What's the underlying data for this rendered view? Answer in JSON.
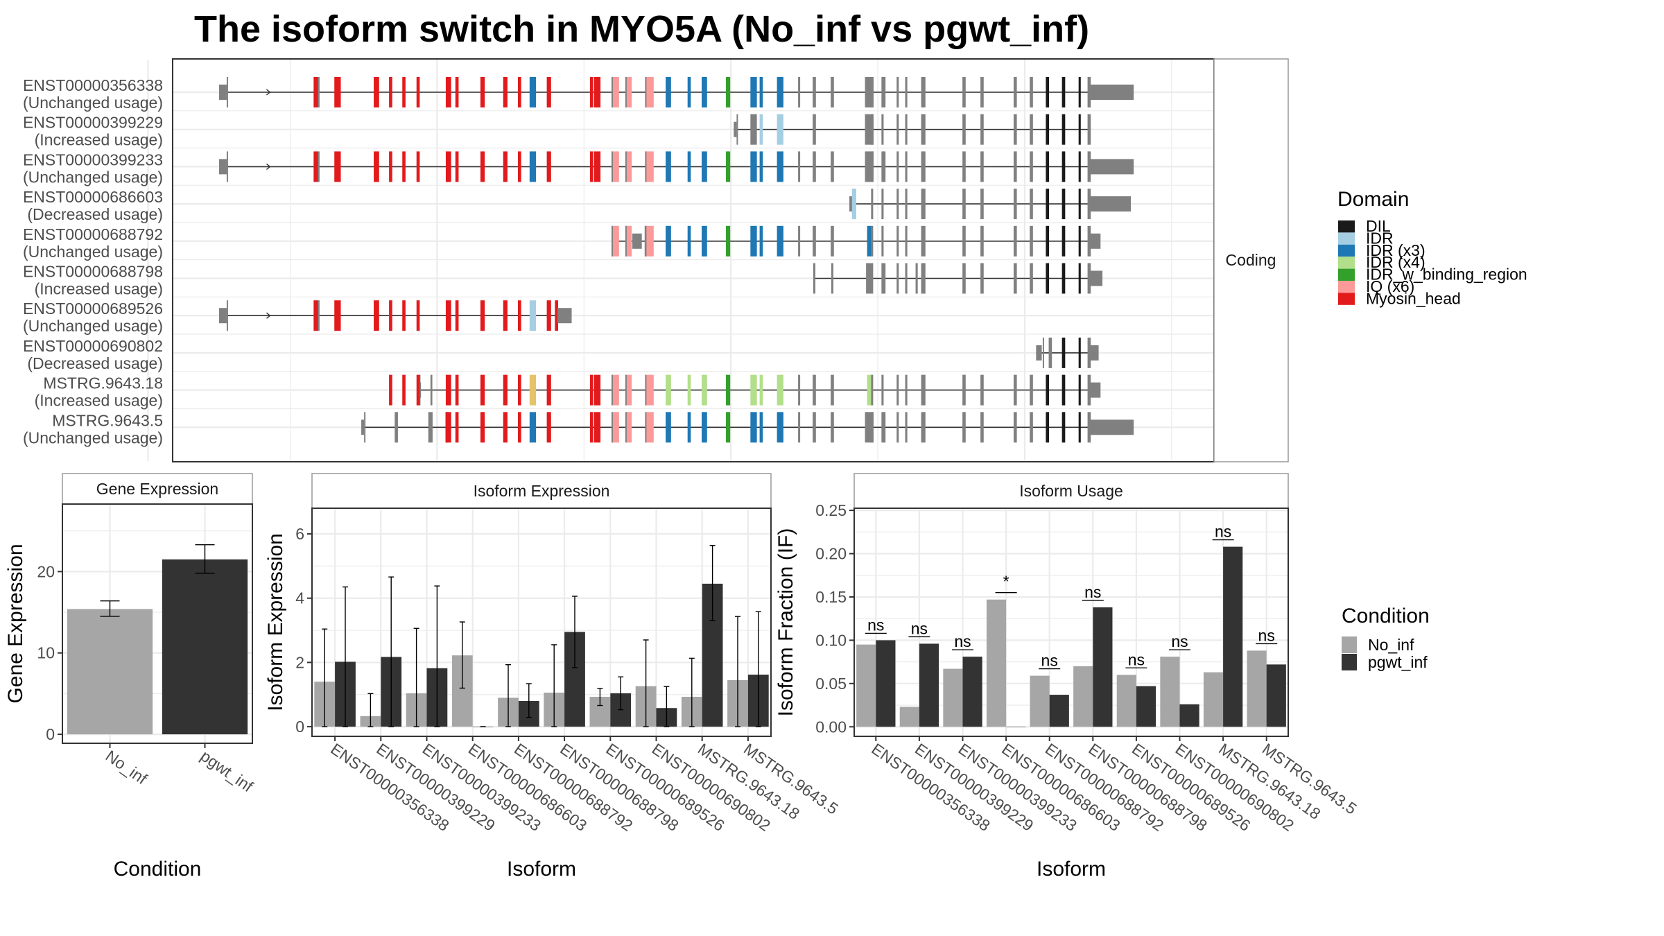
{
  "title": "The isoform switch in MYO5A (No_inf vs pgwt_inf)",
  "chart_data": [
    {
      "type": "gene-structure",
      "panel": "transcript-structure",
      "strip_label": "Coding",
      "genomic_range": [
        0,
        1000
      ],
      "transcripts": [
        {
          "id": "ENST00000356338",
          "usage": "(Unchanged usage)"
        },
        {
          "id": "ENST00000399229",
          "usage": "(Increased usage)"
        },
        {
          "id": "ENST00000399233",
          "usage": "(Unchanged usage)"
        },
        {
          "id": "ENST00000686603",
          "usage": "(Decreased usage)"
        },
        {
          "id": "ENST00000688792",
          "usage": "(Unchanged usage)"
        },
        {
          "id": "ENST00000688798",
          "usage": "(Increased usage)"
        },
        {
          "id": "ENST00000689526",
          "usage": "(Unchanged usage)"
        },
        {
          "id": "ENST00000690802",
          "usage": "(Decreased usage)"
        },
        {
          "id": "MSTRG.9643.18",
          "usage": "(Increased usage)"
        },
        {
          "id": "MSTRG.9643.5",
          "usage": "(Unchanged usage)"
        }
      ],
      "legend": {
        "title": "Domain",
        "items": [
          {
            "label": "DIL",
            "color": "#1a1a1a"
          },
          {
            "label": "IDR",
            "color": "#a6cee3"
          },
          {
            "label": "IDR (x3)",
            "color": "#1f78b4"
          },
          {
            "label": "IDR (x4)",
            "color": "#b2df8a"
          },
          {
            "label": "IDR_w_binding_region",
            "color": "#33a02c"
          },
          {
            "label": "IQ (x6)",
            "color": "#fb9a99"
          },
          {
            "label": "Myosin_head",
            "color": "#e31a1c"
          }
        ]
      },
      "noncoding_color": "#808080"
    },
    {
      "type": "bar",
      "panel": "gene-expression",
      "title": "Gene Expression",
      "xlabel": "Condition",
      "ylabel": "Gene Expression",
      "categories": [
        "No_inf",
        "pgwt_inf"
      ],
      "values": [
        15.4,
        21.5
      ],
      "error_low": [
        14.5,
        19.8
      ],
      "error_high": [
        16.4,
        23.3
      ],
      "colors": [
        "#a6a6a6",
        "#333333"
      ],
      "yticks": [
        0,
        10,
        20
      ],
      "ylim": [
        -1.1,
        28.3
      ]
    },
    {
      "type": "bar",
      "panel": "isoform-expression",
      "title": "Isoform Expression",
      "xlabel": "Isoform",
      "ylabel": "Isoform Expression",
      "categories": [
        "ENST00000356338",
        "ENST00000399229",
        "ENST00000399233",
        "ENST00000686603",
        "ENST00000688792",
        "ENST00000688798",
        "ENST00000689526",
        "ENST00000690802",
        "MSTRG.9643.18",
        "MSTRG.9643.5"
      ],
      "series": [
        {
          "name": "No_inf",
          "values": [
            1.4,
            0.33,
            1.04,
            2.22,
            0.9,
            1.06,
            0.93,
            1.26,
            0.93,
            1.45
          ],
          "error_low": [
            0,
            0,
            0,
            1.2,
            0,
            0,
            0.66,
            0,
            0,
            0
          ],
          "error_high": [
            3.04,
            1.03,
            3.06,
            3.26,
            1.93,
            2.55,
            1.19,
            2.7,
            2.13,
            3.43
          ]
        },
        {
          "name": "pgwt_inf",
          "values": [
            2.02,
            2.17,
            1.82,
            0.0,
            0.8,
            2.95,
            1.04,
            0.58,
            4.45,
            1.62
          ],
          "error_low": [
            0,
            0,
            0,
            0,
            0.29,
            1.84,
            0.53,
            0,
            3.3,
            0
          ],
          "error_high": [
            4.35,
            4.66,
            4.38,
            0,
            1.34,
            4.06,
            1.55,
            1.25,
            5.64,
            3.58
          ]
        }
      ],
      "yticks": [
        0,
        2,
        4,
        6
      ],
      "ylim": [
        -0.3,
        6.8
      ]
    },
    {
      "type": "bar",
      "panel": "isoform-usage",
      "title": "Isoform Usage",
      "xlabel": "Isoform",
      "ylabel": "Isoform Fraction (IF)",
      "categories": [
        "ENST00000356338",
        "ENST00000399229",
        "ENST00000399233",
        "ENST00000686603",
        "ENST00000688792",
        "ENST00000688798",
        "ENST00000689526",
        "ENST00000690802",
        "MSTRG.9643.18",
        "MSTRG.9643.5"
      ],
      "series": [
        {
          "name": "No_inf",
          "values": [
            0.095,
            0.023,
            0.067,
            0.147,
            0.059,
            0.07,
            0.06,
            0.081,
            0.063,
            0.088
          ]
        },
        {
          "name": "pgwt_inf",
          "values": [
            0.1,
            0.096,
            0.081,
            0.0,
            0.037,
            0.138,
            0.047,
            0.026,
            0.208,
            0.072
          ]
        }
      ],
      "significance": [
        "ns",
        "ns",
        "ns",
        "*",
        "ns",
        "ns",
        "ns",
        "ns",
        "ns",
        "ns"
      ],
      "yticks": [
        0.0,
        0.05,
        0.1,
        0.15,
        0.2,
        0.25
      ],
      "ytick_labels": [
        "0.00",
        "0.05",
        "0.10",
        "0.15",
        "0.20",
        "0.25"
      ],
      "ylim": [
        -0.011,
        0.2525
      ]
    }
  ],
  "condition_legend": {
    "title": "Condition",
    "items": [
      {
        "label": "No_inf",
        "color": "#a6a6a6"
      },
      {
        "label": "pgwt_inf",
        "color": "#333333"
      }
    ]
  }
}
